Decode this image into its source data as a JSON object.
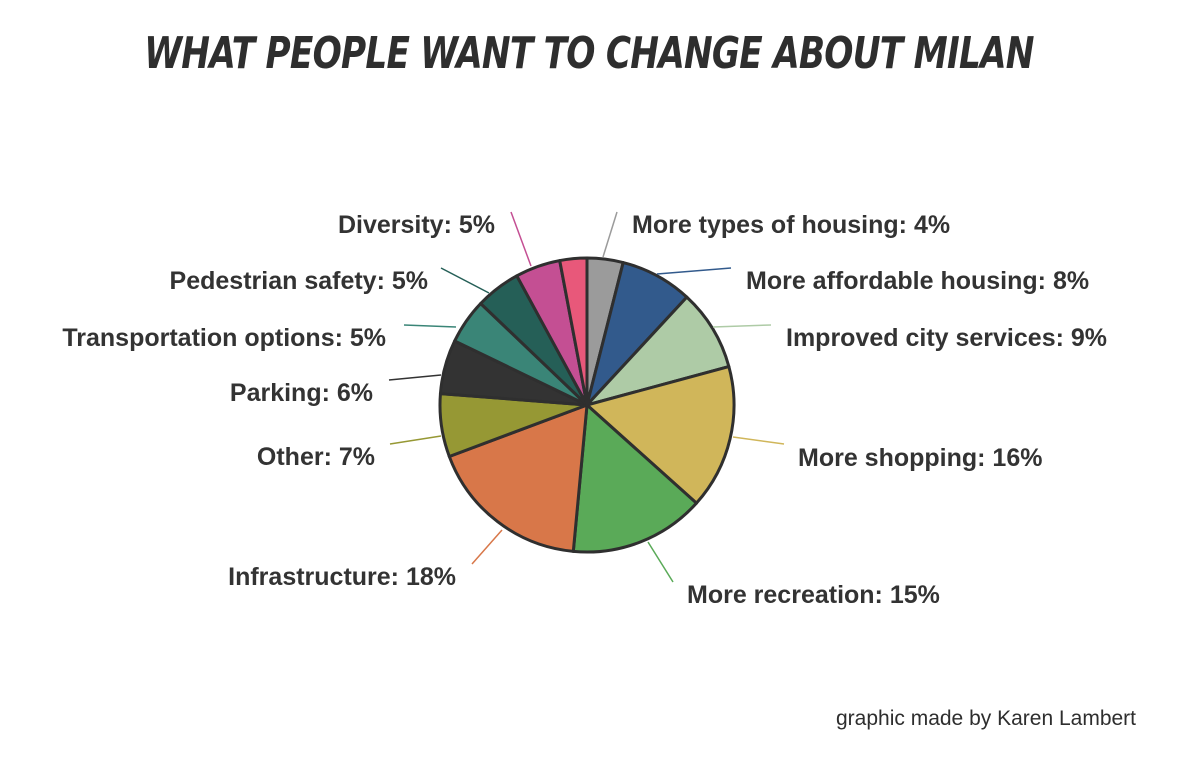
{
  "chart_data": {
    "type": "pie",
    "title": "What People Want To Change About Milan",
    "credit": "graphic made by Karen Lambert",
    "slices": [
      {
        "label": "More types of housing: 4%",
        "value": 4,
        "color": "#9b9b9b"
      },
      {
        "label": "More affordable housing: 8%",
        "value": 8,
        "color": "#325a8c"
      },
      {
        "label": "Improved city services: 9%",
        "value": 9,
        "color": "#aecba6"
      },
      {
        "label": "More shopping: 16%",
        "value": 16,
        "color": "#d0b65a"
      },
      {
        "label": "More recreation: 15%",
        "value": 15,
        "color": "#5aaa58"
      },
      {
        "label": "Infrastructure: 18%",
        "value": 18,
        "color": "#d87749"
      },
      {
        "label": "Other: 7%",
        "value": 7,
        "color": "#969834"
      },
      {
        "label": "Parking: 6%",
        "value": 6,
        "color": "#333333"
      },
      {
        "label": "Transportation options: 5%",
        "value": 5,
        "color": "#3a8577"
      },
      {
        "label": "Pedestrian safety: 5%",
        "value": 5,
        "color": "#255f57"
      },
      {
        "label": "Diversity: 5%",
        "value": 5,
        "color": "#c44f93"
      },
      {
        "label": "",
        "value": 3,
        "color": "#e8587a"
      }
    ]
  }
}
